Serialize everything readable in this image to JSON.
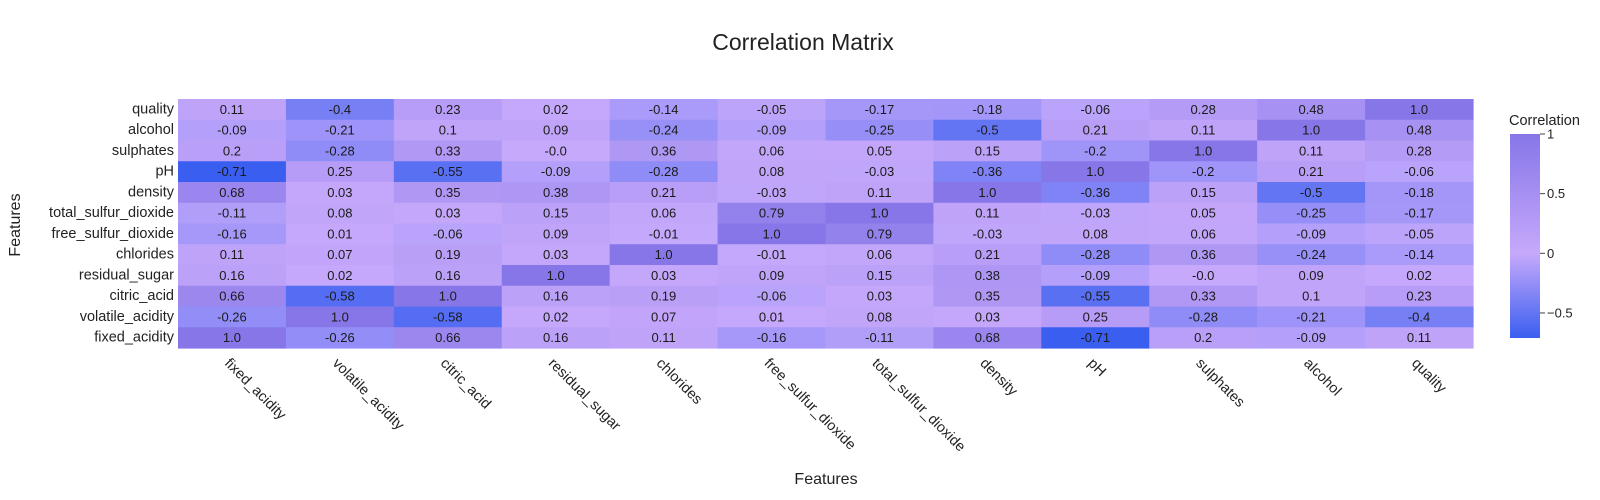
{
  "chart_data": {
    "type": "heatmap",
    "title": "Correlation Matrix",
    "xlabel": "Features",
    "ylabel": "Features",
    "x_categories": [
      "fixed_acidity",
      "volatile_acidity",
      "citric_acid",
      "residual_sugar",
      "chlorides",
      "free_sulfur_dioxide",
      "total_sulfur_dioxide",
      "density",
      "pH",
      "sulphates",
      "alcohol",
      "quality"
    ],
    "y_categories_top_to_bottom": [
      "quality",
      "alcohol",
      "sulphates",
      "pH",
      "density",
      "total_sulfur_dioxide",
      "free_sulfur_dioxide",
      "chlorides",
      "residual_sugar",
      "citric_acid",
      "volatile_acidity",
      "fixed_acidity"
    ],
    "values_top_to_bottom": [
      [
        "0.11",
        "-0.4",
        "0.23",
        "0.02",
        "-0.14",
        "-0.05",
        "-0.17",
        "-0.18",
        "-0.06",
        "0.28",
        "0.48",
        "1.0"
      ],
      [
        "-0.09",
        "-0.21",
        "0.1",
        "0.09",
        "-0.24",
        "-0.09",
        "-0.25",
        "-0.5",
        "0.21",
        "0.11",
        "1.0",
        "0.48"
      ],
      [
        "0.2",
        "-0.28",
        "0.33",
        "-0.0",
        "0.36",
        "0.06",
        "0.05",
        "0.15",
        "-0.2",
        "1.0",
        "0.11",
        "0.28"
      ],
      [
        "-0.71",
        "0.25",
        "-0.55",
        "-0.09",
        "-0.28",
        "0.08",
        "-0.03",
        "-0.36",
        "1.0",
        "-0.2",
        "0.21",
        "-0.06"
      ],
      [
        "0.68",
        "0.03",
        "0.35",
        "0.38",
        "0.21",
        "-0.03",
        "0.11",
        "1.0",
        "-0.36",
        "0.15",
        "-0.5",
        "-0.18"
      ],
      [
        "-0.11",
        "0.08",
        "0.03",
        "0.15",
        "0.06",
        "0.79",
        "1.0",
        "0.11",
        "-0.03",
        "0.05",
        "-0.25",
        "-0.17"
      ],
      [
        "-0.16",
        "0.01",
        "-0.06",
        "0.09",
        "-0.01",
        "1.0",
        "0.79",
        "-0.03",
        "0.08",
        "0.06",
        "-0.09",
        "-0.05"
      ],
      [
        "0.11",
        "0.07",
        "0.19",
        "0.03",
        "1.0",
        "-0.01",
        "0.06",
        "0.21",
        "-0.28",
        "0.36",
        "-0.24",
        "-0.14"
      ],
      [
        "0.16",
        "0.02",
        "0.16",
        "1.0",
        "0.03",
        "0.09",
        "0.15",
        "0.38",
        "-0.09",
        "-0.0",
        "0.09",
        "0.02"
      ],
      [
        "0.66",
        "-0.58",
        "1.0",
        "0.16",
        "0.19",
        "-0.06",
        "0.03",
        "0.35",
        "-0.55",
        "0.33",
        "0.1",
        "0.23"
      ],
      [
        "-0.26",
        "1.0",
        "-0.58",
        "0.02",
        "0.07",
        "0.01",
        "0.08",
        "0.03",
        "0.25",
        "-0.28",
        "-0.21",
        "-0.4"
      ],
      [
        "1.0",
        "-0.26",
        "0.66",
        "0.16",
        "0.11",
        "-0.16",
        "-0.11",
        "0.68",
        "-0.71",
        "0.2",
        "-0.09",
        "0.11"
      ]
    ],
    "zlim": [
      -0.71,
      1.0
    ],
    "colorscale": [
      [
        "-0.71",
        "#3a5ff0"
      ],
      [
        "0.0",
        "#c6a9fb"
      ],
      [
        "1.0",
        "#8676e8"
      ]
    ],
    "colorbar": {
      "title": "Correlation",
      "tick_values": [
        -0.5,
        0,
        0.5,
        1
      ],
      "tick_labels": [
        "−0.5",
        "0",
        "0.5",
        "1"
      ],
      "placement": "right"
    },
    "grid": false
  }
}
